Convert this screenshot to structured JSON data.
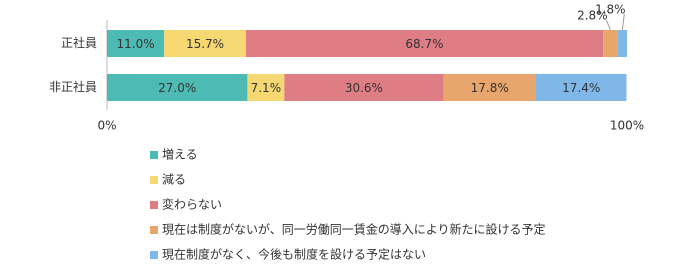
{
  "chart_data": {
    "type": "stacked-bar-horizontal",
    "categories": [
      "正社員",
      "非正社員"
    ],
    "series": [
      {
        "name": "増える",
        "color": "#4dbab3",
        "values": [
          11.0,
          27.0
        ],
        "value_labels": [
          "11.0%",
          "27.0%"
        ]
      },
      {
        "name": "減る",
        "color": "#f5d872",
        "values": [
          15.7,
          7.1
        ],
        "value_labels": [
          "15.7%",
          "7.1%"
        ]
      },
      {
        "name": "変わらない",
        "color": "#df7d84",
        "values": [
          68.7,
          30.6
        ],
        "value_labels": [
          "68.7%",
          "30.6%"
        ]
      },
      {
        "name": "現在は制度がないが、同一労働同一賃金の導入により新たに設ける予定",
        "color": "#e8a66c",
        "values": [
          2.8,
          17.8
        ],
        "value_labels": [
          "2.8%",
          "17.8%"
        ]
      },
      {
        "name": "現在制度がなく、今後も制度を設ける予定はない",
        "color": "#7fb8e8",
        "values": [
          1.8,
          17.4
        ],
        "value_labels": [
          "1.8%",
          "17.4%"
        ]
      }
    ],
    "xlim": [
      0,
      100
    ],
    "xticks": [
      {
        "value": 0,
        "label": "0%"
      },
      {
        "value": 100,
        "label": "100%"
      }
    ]
  }
}
